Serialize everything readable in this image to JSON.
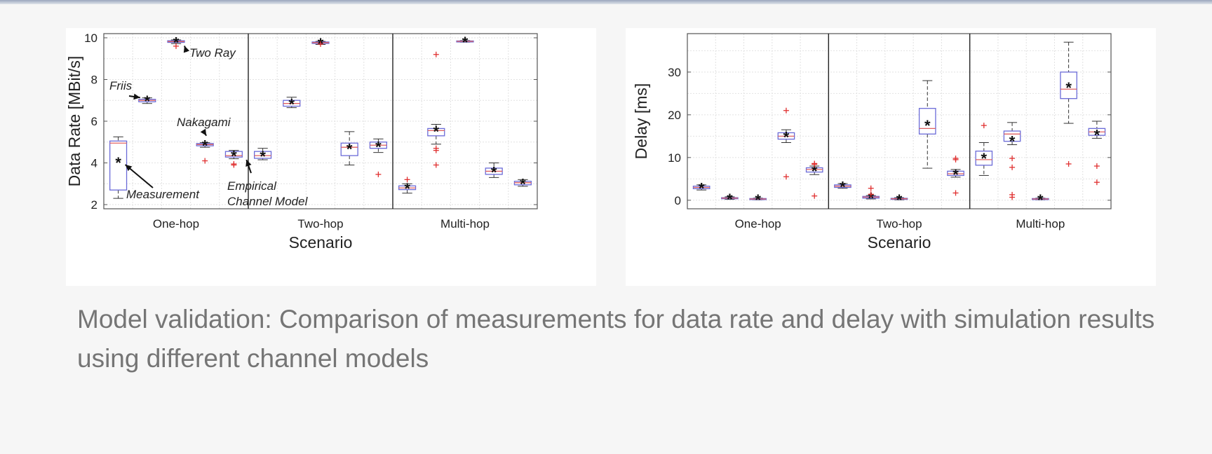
{
  "caption": "Model validation: Comparison of measurements for data rate and delay with simulation results using different channel models",
  "colors": {
    "box": "#6b6bd8",
    "median": "#e06060",
    "outlier": "#e03030",
    "whisker": "#333333",
    "mean": "#111111",
    "grid": "#e2e2e2",
    "axis": "#555555"
  },
  "chart_data": [
    {
      "type": "box",
      "xlabel": "Scenario",
      "ylabel": "Data Rate [MBit/s]",
      "ylim": [
        1.8,
        10.2
      ],
      "yticks": [
        2,
        4,
        6,
        8,
        10
      ],
      "grid": true,
      "categories": [
        "One-hop",
        "Two-hop",
        "Multi-hop"
      ],
      "series_order": [
        "Measurement",
        "Friis",
        "Two Ray",
        "Nakagami",
        "Empirical Channel Model"
      ],
      "annotations": [
        {
          "text": "Two Ray",
          "group": 0,
          "series": 2
        },
        {
          "text": "Friis",
          "group": 0,
          "series": 1
        },
        {
          "text": "Nakagami",
          "group": 0,
          "series": 3
        },
        {
          "text": "Measurement",
          "group": 0,
          "series": 0
        },
        {
          "text": "Empirical",
          "group": 0,
          "series": 4
        },
        {
          "text": "Channel Model",
          "group": 0,
          "series": 4
        }
      ],
      "boxes": [
        {
          "group": 0,
          "series": 0,
          "q1": 2.7,
          "median": 4.95,
          "q3": 5.05,
          "wlow": 2.3,
          "whigh": 5.25,
          "mean": 4.05,
          "outliers": []
        },
        {
          "group": 0,
          "series": 1,
          "q1": 6.93,
          "median": 7.0,
          "q3": 7.05,
          "wlow": 6.85,
          "whigh": 7.12,
          "mean": 7.0,
          "outliers": []
        },
        {
          "group": 0,
          "series": 2,
          "q1": 9.78,
          "median": 9.82,
          "q3": 9.86,
          "wlow": 9.72,
          "whigh": 9.9,
          "mean": 9.82,
          "outliers": [
            9.6
          ]
        },
        {
          "group": 0,
          "series": 3,
          "q1": 4.82,
          "median": 4.88,
          "q3": 4.93,
          "wlow": 4.75,
          "whigh": 4.97,
          "mean": 4.88,
          "outliers": [
            4.1
          ]
        },
        {
          "group": 0,
          "series": 4,
          "q1": 4.28,
          "median": 4.35,
          "q3": 4.55,
          "wlow": 4.2,
          "whigh": 4.6,
          "mean": 4.37,
          "outliers": [
            3.9,
            3.95
          ]
        },
        {
          "group": 1,
          "series": 0,
          "q1": 4.22,
          "median": 4.35,
          "q3": 4.55,
          "wlow": 4.15,
          "whigh": 4.7,
          "mean": 4.35,
          "outliers": []
        },
        {
          "group": 1,
          "series": 1,
          "q1": 6.72,
          "median": 6.85,
          "q3": 7.0,
          "wlow": 6.65,
          "whigh": 7.15,
          "mean": 6.85,
          "outliers": []
        },
        {
          "group": 1,
          "series": 2,
          "q1": 9.73,
          "median": 9.77,
          "q3": 9.8,
          "wlow": 9.68,
          "whigh": 9.83,
          "mean": 9.76,
          "outliers": [
            9.7
          ]
        },
        {
          "group": 1,
          "series": 3,
          "q1": 4.35,
          "median": 4.75,
          "q3": 4.95,
          "wlow": 3.9,
          "whigh": 5.5,
          "mean": 4.7,
          "outliers": []
        },
        {
          "group": 1,
          "series": 4,
          "q1": 4.7,
          "median": 4.85,
          "q3": 5.0,
          "wlow": 4.5,
          "whigh": 5.15,
          "mean": 4.8,
          "outliers": [
            3.45
          ]
        },
        {
          "group": 2,
          "series": 0,
          "q1": 2.72,
          "median": 2.8,
          "q3": 2.9,
          "wlow": 2.55,
          "whigh": 3.0,
          "mean": 2.8,
          "outliers": [
            3.2
          ]
        },
        {
          "group": 2,
          "series": 1,
          "q1": 5.3,
          "median": 5.55,
          "q3": 5.65,
          "wlow": 4.9,
          "whigh": 5.85,
          "mean": 5.55,
          "outliers": [
            9.2,
            4.7,
            4.6,
            3.9
          ]
        },
        {
          "group": 2,
          "series": 2,
          "q1": 9.81,
          "median": 9.83,
          "q3": 9.85,
          "wlow": 9.79,
          "whigh": 9.87,
          "mean": 9.83,
          "outliers": []
        },
        {
          "group": 2,
          "series": 3,
          "q1": 3.45,
          "median": 3.6,
          "q3": 3.75,
          "wlow": 3.3,
          "whigh": 4.0,
          "mean": 3.6,
          "outliers": []
        },
        {
          "group": 2,
          "series": 4,
          "q1": 2.95,
          "median": 3.05,
          "q3": 3.12,
          "wlow": 2.88,
          "whigh": 3.2,
          "mean": 3.02,
          "outliers": []
        }
      ]
    },
    {
      "type": "box",
      "xlabel": "Scenario",
      "ylabel": "Delay [ms]",
      "ylim": [
        -2,
        39
      ],
      "yticks": [
        0,
        10,
        20,
        30
      ],
      "grid": true,
      "categories": [
        "One-hop",
        "Two-hop",
        "Multi-hop"
      ],
      "series_order": [
        "Measurement",
        "Friis",
        "Two Ray",
        "Nakagami",
        "Empirical Channel Model"
      ],
      "boxes": [
        {
          "group": 0,
          "series": 0,
          "q1": 2.7,
          "median": 3.0,
          "q3": 3.3,
          "wlow": 2.4,
          "whigh": 3.6,
          "mean": 3.0,
          "outliers": []
        },
        {
          "group": 0,
          "series": 1,
          "q1": 0.35,
          "median": 0.5,
          "q3": 0.6,
          "wlow": 0.2,
          "whigh": 0.8,
          "mean": 0.5,
          "outliers": []
        },
        {
          "group": 0,
          "series": 2,
          "q1": 0.2,
          "median": 0.3,
          "q3": 0.4,
          "wlow": 0.1,
          "whigh": 0.5,
          "mean": 0.3,
          "outliers": []
        },
        {
          "group": 0,
          "series": 3,
          "q1": 14.3,
          "median": 15.0,
          "q3": 15.8,
          "wlow": 13.5,
          "whigh": 16.5,
          "mean": 15.0,
          "outliers": [
            21,
            5.5
          ]
        },
        {
          "group": 0,
          "series": 4,
          "q1": 6.6,
          "median": 7.2,
          "q3": 7.6,
          "wlow": 6.0,
          "whigh": 8.0,
          "mean": 7.0,
          "outliers": [
            8.4,
            8.6,
            1.0
          ]
        },
        {
          "group": 1,
          "series": 0,
          "q1": 3.0,
          "median": 3.3,
          "q3": 3.6,
          "wlow": 2.8,
          "whigh": 3.9,
          "mean": 3.3,
          "outliers": []
        },
        {
          "group": 1,
          "series": 1,
          "q1": 0.5,
          "median": 0.75,
          "q3": 0.9,
          "wlow": 0.3,
          "whigh": 1.1,
          "mean": 0.7,
          "outliers": [
            2.8,
            1.4
          ]
        },
        {
          "group": 1,
          "series": 2,
          "q1": 0.2,
          "median": 0.35,
          "q3": 0.45,
          "wlow": 0.1,
          "whigh": 0.6,
          "mean": 0.3,
          "outliers": []
        },
        {
          "group": 1,
          "series": 3,
          "q1": 15.5,
          "median": 16.8,
          "q3": 21.5,
          "wlow": 7.5,
          "whigh": 28.0,
          "mean": 17.7,
          "outliers": []
        },
        {
          "group": 1,
          "series": 4,
          "q1": 5.8,
          "median": 6.2,
          "q3": 6.8,
          "wlow": 5.4,
          "whigh": 7.2,
          "mean": 6.2,
          "outliers": [
            9.8,
            9.5,
            1.7
          ]
        },
        {
          "group": 2,
          "series": 0,
          "q1": 8.2,
          "median": 9.5,
          "q3": 11.5,
          "wlow": 5.8,
          "whigh": 13.5,
          "mean": 10.0,
          "outliers": [
            17.5
          ]
        },
        {
          "group": 2,
          "series": 1,
          "q1": 13.8,
          "median": 15.5,
          "q3": 16.2,
          "wlow": 13.0,
          "whigh": 18.2,
          "mean": 14.0,
          "outliers": [
            9.8,
            7.7,
            1.3,
            0.7
          ]
        },
        {
          "group": 2,
          "series": 2,
          "q1": 0.2,
          "median": 0.3,
          "q3": 0.4,
          "wlow": 0.1,
          "whigh": 0.5,
          "mean": 0.3,
          "outliers": []
        },
        {
          "group": 2,
          "series": 3,
          "q1": 23.8,
          "median": 26.0,
          "q3": 30.0,
          "wlow": 18.0,
          "whigh": 37.0,
          "mean": 26.5,
          "outliers": [
            8.5
          ]
        },
        {
          "group": 2,
          "series": 4,
          "q1": 15.2,
          "median": 16.0,
          "q3": 16.8,
          "wlow": 14.5,
          "whigh": 18.5,
          "mean": 15.5,
          "outliers": [
            8.0,
            4.2
          ]
        }
      ]
    }
  ]
}
